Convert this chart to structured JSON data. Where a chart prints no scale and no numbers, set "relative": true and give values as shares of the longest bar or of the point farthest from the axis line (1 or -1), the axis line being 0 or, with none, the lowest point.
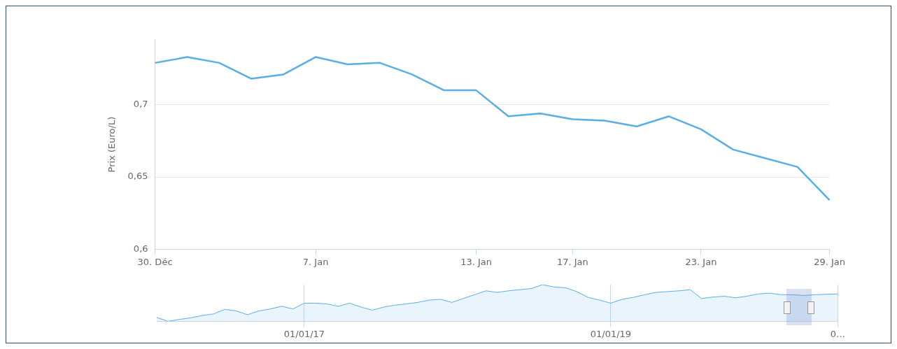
{
  "chart_data": [
    {
      "type": "line",
      "ylabel": "Prix (Euro/L)",
      "categories": [
        "30. Déc",
        null,
        null,
        null,
        null,
        "7. Jan",
        null,
        null,
        null,
        null,
        "13. Jan",
        null,
        null,
        "17. Jan",
        null,
        null,
        null,
        "23. Jan",
        null,
        null,
        null,
        "29. Jan"
      ],
      "series": [
        {
          "color": "#5aaee6",
          "values": [
            0.729,
            0.733,
            0.729,
            0.718,
            0.721,
            0.733,
            0.728,
            0.729,
            0.721,
            0.71,
            0.71,
            0.692,
            0.694,
            0.69,
            0.689,
            0.685,
            0.692,
            0.683,
            0.669,
            0.663,
            0.657,
            0.634
          ]
        }
      ],
      "ylim": [
        0.6,
        0.745
      ],
      "yticks": [
        {
          "value": 0.6,
          "label": "0,6"
        },
        {
          "value": 0.65,
          "label": "0,65"
        },
        {
          "value": 0.7,
          "label": "0,7"
        }
      ],
      "grid": "y",
      "legend": false,
      "marker": "none"
    },
    {
      "type": "area",
      "relative": true,
      "categories": [
        null,
        null,
        null,
        null,
        null,
        null,
        null,
        null,
        null,
        null,
        null,
        null,
        null,
        "01/01/17",
        null,
        null,
        null,
        null,
        null,
        null,
        null,
        null,
        null,
        null,
        null,
        null,
        null,
        null,
        null,
        null,
        null,
        null,
        null,
        null,
        null,
        null,
        null,
        null,
        null,
        null,
        "01/01/19",
        null,
        null,
        null,
        null,
        null,
        null,
        null,
        null,
        null,
        null,
        null,
        null,
        null,
        null,
        null,
        null,
        null,
        null,
        null,
        "0…"
      ],
      "series": [
        {
          "color": "#5aaee6",
          "values": [
            0.105,
            0,
            0.053,
            0.095,
            0.158,
            0.2,
            0.326,
            0.284,
            0.179,
            0.284,
            0.337,
            0.411,
            0.337,
            0.495,
            0.495,
            0.474,
            0.411,
            0.495,
            0.389,
            0.305,
            0.389,
            0.442,
            0.474,
            0.516,
            0.579,
            0.6,
            0.516,
            0.621,
            0.726,
            0.832,
            0.789,
            0.832,
            0.863,
            0.895,
            1,
            0.937,
            0.916,
            0.811,
            0.653,
            0.579,
            0.495,
            0.6,
            0.653,
            0.726,
            0.789,
            0.811,
            0.832,
            0.863,
            0.621,
            0.663,
            0.684,
            0.642,
            0.684,
            0.747,
            0.768,
            0.726,
            0.726,
            0.705,
            0.726,
            0.737,
            0.747
          ]
        }
      ],
      "tick_labels": "x",
      "grid": "x",
      "legend": false,
      "marker": "none"
    }
  ]
}
